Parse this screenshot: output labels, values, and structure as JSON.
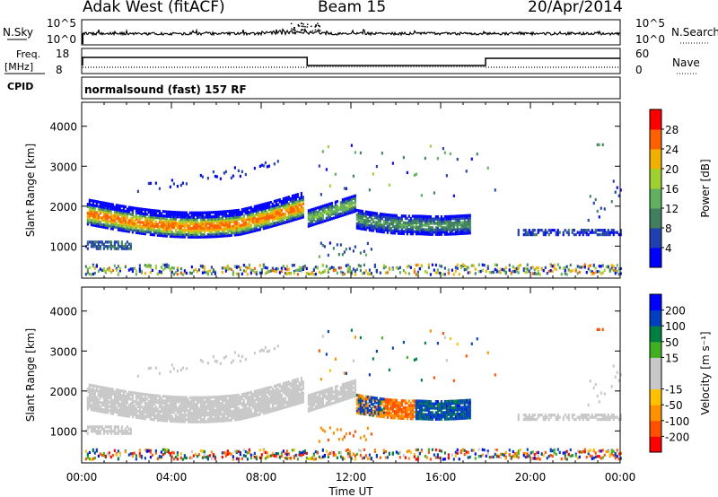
{
  "header": {
    "station": "Adak West (fitACF)",
    "beam": "Beam 15",
    "date": "20/Apr/2014"
  },
  "panels": {
    "nsky": {
      "label": "N.Sky",
      "tick_top": "10^5",
      "tick_bot": "10^0",
      "right_label": "N.Search",
      "right_top": "10^5",
      "right_bot": "10^0"
    },
    "freq": {
      "label_top": "Freq.",
      "label_unit": "[MHz]",
      "tick_top": "18",
      "tick_bot": "8",
      "right_label": "Nave",
      "right_top": "60",
      "right_bot": "0"
    },
    "cpid": {
      "label": "CPID",
      "text": "normalsound (fast) 157 RF"
    }
  },
  "colors": {
    "power_bar": [
      "#0000ff",
      "#2040b0",
      "#407f60",
      "#60b060",
      "#a0d030",
      "#f0b000",
      "#ff6000",
      "#ff0000"
    ],
    "velocity_bar": [
      "#ff0000",
      "#ff5000",
      "#ff9000",
      "#ffc000",
      "#c8c8c8",
      "#c8c8c8",
      "#40b020",
      "#008040",
      "#0040c0",
      "#0000ff"
    ]
  },
  "chart_data": [
    {
      "type": "heatmap",
      "name": "power",
      "ylabel": "Slant Range [km]",
      "xlabel": "",
      "yticks": [
        "1000",
        "2000",
        "3000",
        "4000"
      ],
      "ylim": [
        200,
        4600
      ],
      "xlim_hours": [
        0,
        24
      ],
      "colorbar": {
        "label": "Power [dB]",
        "ticks": [
          "4",
          "8",
          "12",
          "16",
          "20",
          "24",
          "28"
        ],
        "range": [
          0,
          32
        ]
      },
      "bands": [
        {
          "t0": 0.2,
          "t1": 9.8,
          "r_center_start": 1800,
          "r_center_mid": 1450,
          "r_center_end": 1750,
          "width": 500,
          "peak": 28
        },
        {
          "t0": 10.0,
          "t1": 12.2,
          "r_center_start": 1700,
          "r_center_mid": 1850,
          "r_center_end": 2050,
          "width": 400,
          "peak": 18
        },
        {
          "t0": 12.2,
          "t1": 17.3,
          "r_center_start": 1600,
          "r_center_mid": 1650,
          "r_center_end": 1500,
          "width": 450,
          "peak": 14
        },
        {
          "t0": 0.2,
          "t1": 2.2,
          "r_center_start": 1000,
          "r_center_mid": 1000,
          "r_center_end": 1050,
          "width": 150,
          "peak": 10
        },
        {
          "t0": 19.5,
          "t1": 24.0,
          "r_center_start": 1300,
          "r_center_mid": 1300,
          "r_center_end": 1300,
          "width": 120,
          "peak": 6
        }
      ]
    },
    {
      "type": "heatmap",
      "name": "velocity",
      "ylabel": "Slant Range [km]",
      "xlabel": "Time UT",
      "xticks": [
        "00:00",
        "04:00",
        "08:00",
        "12:00",
        "16:00",
        "20:00",
        "00:00"
      ],
      "yticks": [
        "1000",
        "2000",
        "3000",
        "4000"
      ],
      "ylim": [
        200,
        4600
      ],
      "xlim_hours": [
        0,
        24
      ],
      "colorbar": {
        "label": "Velocity [m s⁻¹]",
        "ticks": [
          "-200",
          "-100",
          "-50",
          "-15",
          "15",
          "50",
          "100",
          "200"
        ],
        "range": [
          -250,
          250
        ]
      }
    }
  ]
}
